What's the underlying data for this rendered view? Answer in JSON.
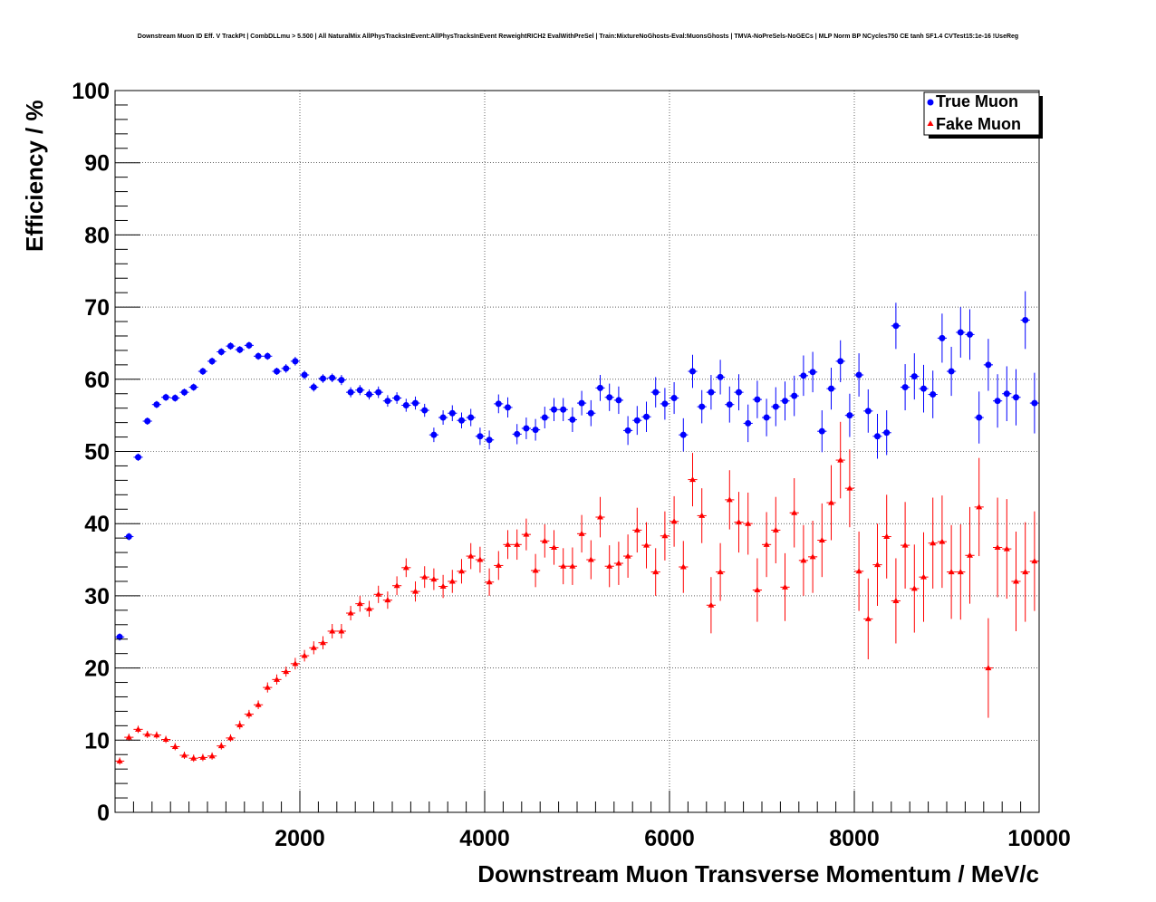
{
  "chart_data": {
    "type": "scatter",
    "title": "Downstream Muon ID Eff. V TrackPt | CombDLLmu > 5.500 | All NaturalMix AllPhysTracksInEvent:AllPhysTracksInEvent ReweightRICH2 EvalWithPreSel | Train:MixtureNoGhosts-Eval:MuonsGhosts | TMVA-NoPreSels-NoGECs | MLP Norm BP NCycles750 CE tanh SF1.4 CVTest15:1e-16 !UseReg",
    "xlabel": "Downstream Muon Transverse Momentum / MeV/c",
    "ylabel": "Efficiency / %",
    "xlim": [
      0,
      10000
    ],
    "ylim": [
      0,
      100
    ],
    "x_ticks": [
      2000,
      4000,
      6000,
      8000,
      10000
    ],
    "x_tick_labels": [
      "2000",
      "4000",
      "6000",
      "8000",
      "10000"
    ],
    "y_ticks": [
      0,
      10,
      20,
      30,
      40,
      50,
      60,
      70,
      80,
      90,
      100
    ],
    "y_tick_labels": [
      "0",
      "10",
      "20",
      "30",
      "40",
      "50",
      "60",
      "70",
      "80",
      "90",
      "100"
    ],
    "grid": true,
    "legend_position": "top-right",
    "bin_width": 100,
    "x": [
      50,
      150,
      250,
      350,
      450,
      550,
      650,
      750,
      850,
      950,
      1050,
      1150,
      1250,
      1350,
      1450,
      1550,
      1650,
      1750,
      1850,
      1950,
      2050,
      2150,
      2250,
      2350,
      2450,
      2550,
      2650,
      2750,
      2850,
      2950,
      3050,
      3150,
      3250,
      3350,
      3450,
      3550,
      3650,
      3750,
      3850,
      3950,
      4050,
      4150,
      4250,
      4350,
      4450,
      4550,
      4650,
      4750,
      4850,
      4950,
      5050,
      5150,
      5250,
      5350,
      5450,
      5550,
      5650,
      5750,
      5850,
      5950,
      6050,
      6150,
      6250,
      6350,
      6450,
      6550,
      6650,
      6750,
      6850,
      6950,
      7050,
      7150,
      7250,
      7350,
      7450,
      7550,
      7650,
      7750,
      7850,
      7950,
      8050,
      8150,
      8250,
      8350,
      8450,
      8550,
      8650,
      8750,
      8850,
      8950,
      9050,
      9150,
      9250,
      9350,
      9450,
      9550,
      9650,
      9750,
      9850,
      9950
    ],
    "series": [
      {
        "name": "True Muon",
        "marker": "circle",
        "color": "#0000ff",
        "values": [
          24.3,
          38.2,
          49.2,
          54.2,
          56.5,
          57.5,
          57.4,
          58.2,
          58.9,
          61.1,
          62.5,
          63.8,
          64.6,
          64.1,
          64.7,
          63.2,
          63.2,
          61.1,
          61.5,
          62.5,
          60.6,
          58.9,
          60.1,
          60.2,
          59.9,
          58.2,
          58.5,
          57.9,
          58.2,
          57.0,
          57.4,
          56.4,
          56.7,
          55.7,
          52.3,
          54.7,
          55.3,
          54.3,
          54.7,
          52.1,
          51.6,
          56.6,
          56.1,
          52.4,
          53.2,
          53.0,
          54.7,
          55.8,
          55.8,
          54.4,
          56.7,
          55.3,
          58.8,
          57.5,
          57.1,
          52.9,
          54.3,
          54.8,
          58.2,
          56.6,
          57.4,
          52.3,
          61.1,
          56.2,
          58.2,
          60.3,
          56.5,
          58.2,
          53.9,
          57.2,
          54.7,
          56.2,
          57.0,
          57.7,
          60.5,
          61.0,
          52.8,
          58.7,
          62.5,
          55.0,
          60.6,
          55.6,
          52.1,
          52.6,
          67.4,
          58.9,
          60.4,
          58.7,
          57.9,
          65.7,
          61.1,
          66.5,
          66.2,
          54.7,
          62.0,
          57.0,
          58.0,
          57.5,
          68.2,
          56.7
        ],
        "errors": [
          0.5,
          0.5,
          0.5,
          0.5,
          0.5,
          0.5,
          0.5,
          0.5,
          0.5,
          0.5,
          0.5,
          0.5,
          0.5,
          0.5,
          0.5,
          0.5,
          0.5,
          0.5,
          0.6,
          0.6,
          0.6,
          0.6,
          0.6,
          0.6,
          0.7,
          0.7,
          0.7,
          0.7,
          0.8,
          0.8,
          0.8,
          0.9,
          0.9,
          0.9,
          1.0,
          1.0,
          1.1,
          1.1,
          1.2,
          1.2,
          1.3,
          1.3,
          1.4,
          1.4,
          1.5,
          1.5,
          1.5,
          1.6,
          1.6,
          1.7,
          1.7,
          1.8,
          1.8,
          1.9,
          1.9,
          2.0,
          2.0,
          2.1,
          2.1,
          2.2,
          2.2,
          2.3,
          2.3,
          2.3,
          2.4,
          2.4,
          2.5,
          2.5,
          2.6,
          2.6,
          2.6,
          2.7,
          2.7,
          2.8,
          2.8,
          2.8,
          2.9,
          2.9,
          2.9,
          3.0,
          3.0,
          3.0,
          3.1,
          3.1,
          3.2,
          3.2,
          3.2,
          3.3,
          3.3,
          3.4,
          3.4,
          3.5,
          3.5,
          3.6,
          3.6,
          3.7,
          3.8,
          3.9,
          4.0,
          4.2
        ]
      },
      {
        "name": "Fake Muon",
        "marker": "triangle",
        "color": "#ff0000",
        "values": [
          7.1,
          10.4,
          11.5,
          10.8,
          10.7,
          10.1,
          9.1,
          7.9,
          7.5,
          7.6,
          7.8,
          9.2,
          10.3,
          12.1,
          13.6,
          14.9,
          17.3,
          18.4,
          19.5,
          20.6,
          21.7,
          22.8,
          23.5,
          25.1,
          25.1,
          27.6,
          28.9,
          28.2,
          30.2,
          29.4,
          31.4,
          33.9,
          30.6,
          32.6,
          32.3,
          31.3,
          32.0,
          33.4,
          35.5,
          35.0,
          31.9,
          34.2,
          37.1,
          37.1,
          38.5,
          33.5,
          37.6,
          36.7,
          34.1,
          34.1,
          38.6,
          35.0,
          40.9,
          34.1,
          34.5,
          35.5,
          39.1,
          37.0,
          33.3,
          38.3,
          40.3,
          34.0,
          46.1,
          41.1,
          28.7,
          33.3,
          43.3,
          40.2,
          40.0,
          30.8,
          37.1,
          39.1,
          31.2,
          41.5,
          34.9,
          35.4,
          37.7,
          42.9,
          48.8,
          44.9,
          33.4,
          26.8,
          34.3,
          38.2,
          29.3,
          37.0,
          31.0,
          32.6,
          37.3,
          37.5,
          33.3,
          33.3,
          35.6,
          42.3,
          20.0,
          36.7,
          36.5,
          32.0,
          33.3,
          34.8
        ],
        "errors": [
          0.5,
          0.5,
          0.5,
          0.5,
          0.5,
          0.5,
          0.5,
          0.5,
          0.5,
          0.5,
          0.5,
          0.5,
          0.5,
          0.6,
          0.6,
          0.6,
          0.7,
          0.7,
          0.7,
          0.8,
          0.8,
          0.9,
          0.9,
          1.0,
          1.0,
          1.0,
          1.1,
          1.1,
          1.2,
          1.2,
          1.3,
          1.3,
          1.4,
          1.5,
          1.5,
          1.6,
          1.6,
          1.7,
          1.8,
          1.8,
          1.9,
          2.0,
          2.0,
          2.1,
          2.2,
          2.3,
          2.3,
          2.4,
          2.5,
          2.6,
          2.6,
          2.7,
          2.8,
          2.9,
          3.0,
          3.0,
          3.1,
          3.2,
          3.3,
          3.4,
          3.5,
          3.6,
          3.7,
          3.8,
          3.9,
          4.0,
          4.1,
          4.2,
          4.3,
          4.4,
          4.5,
          4.6,
          4.7,
          4.8,
          4.9,
          5.0,
          5.1,
          5.2,
          5.3,
          5.4,
          5.5,
          5.6,
          5.7,
          5.8,
          5.9,
          6.0,
          6.1,
          6.2,
          6.3,
          6.4,
          6.5,
          6.6,
          6.7,
          6.8,
          6.9,
          6.9,
          6.9,
          6.9,
          6.9,
          6.9
        ]
      }
    ]
  }
}
